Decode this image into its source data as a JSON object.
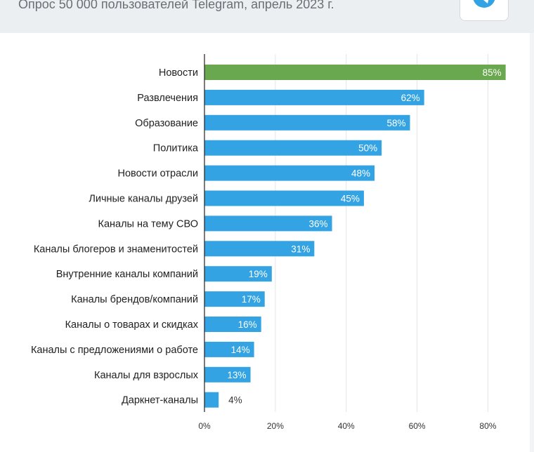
{
  "header": {
    "subtitle": "Опрос 50 000 пользователей Telegram, апрель 2023 г.",
    "share_icon": "telegram-icon"
  },
  "colors": {
    "highlight": "#6aa84f",
    "bar": "#33a3e3",
    "grid": "#e3e5e8",
    "axis": "#222222",
    "label": "#212121"
  },
  "chart_data": {
    "type": "bar",
    "orientation": "horizontal",
    "categories": [
      "Новости",
      "Развлечения",
      "Образование",
      "Политика",
      "Новости отрасли",
      "Личные каналы друзей",
      "Каналы на тему СВО",
      "Каналы блогеров и знаменитостей",
      "Внутренние каналы компаний",
      "Каналы брендов/компаний",
      "Каналы о товарах и скидках",
      "Каналы с предложениями о работе",
      "Каналы для взрослых",
      "Даркнет-каналы"
    ],
    "values": [
      85,
      62,
      58,
      50,
      48,
      45,
      36,
      31,
      19,
      17,
      16,
      14,
      13,
      4
    ],
    "value_labels": [
      "85%",
      "62%",
      "58%",
      "50%",
      "48%",
      "45%",
      "36%",
      "31%",
      "19%",
      "17%",
      "16%",
      "14%",
      "13%",
      "4%"
    ],
    "highlighted_index": 0,
    "xlim": [
      0,
      80
    ],
    "xticks": [
      0,
      20,
      40,
      60,
      80
    ],
    "xtick_labels": [
      "0%",
      "20%",
      "40%",
      "60%",
      "80%"
    ],
    "grid": true,
    "legend": "none"
  }
}
